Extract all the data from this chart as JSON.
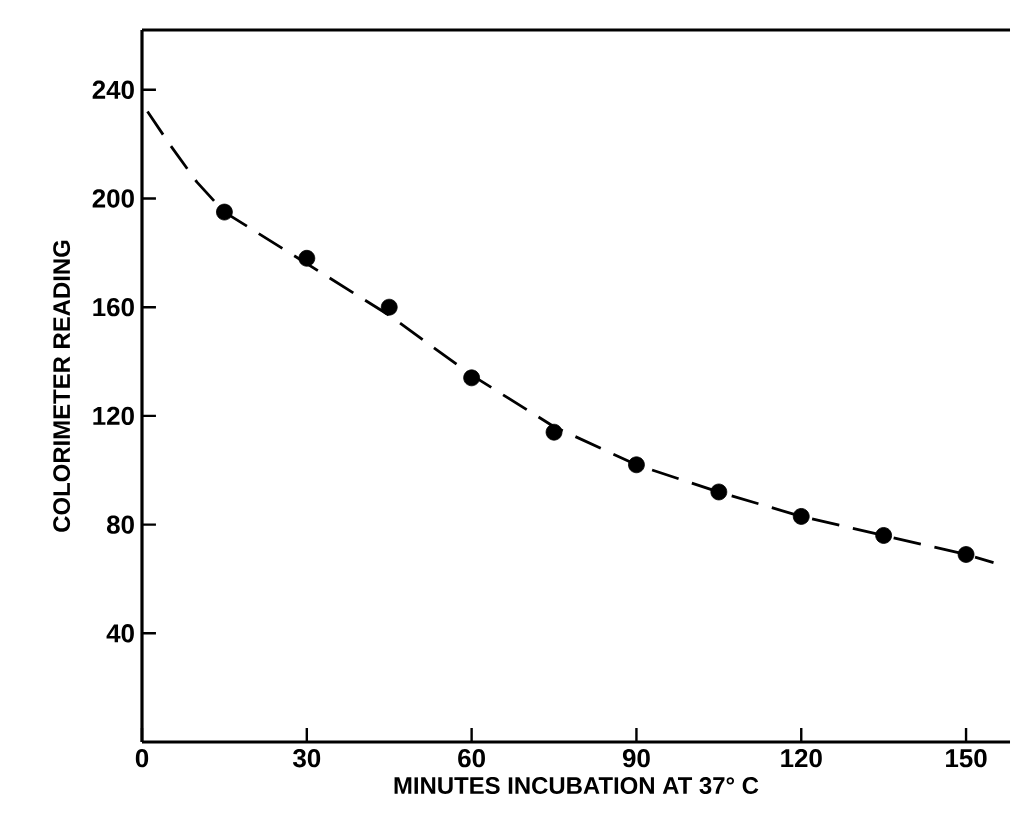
{
  "chart_data": {
    "type": "scatter",
    "xlabel": "MINUTES INCUBATION AT 37° C",
    "ylabel": "COLORIMETER READING",
    "xlim": [
      0,
      158
    ],
    "ylim": [
      0,
      262
    ],
    "xticks": [
      0,
      30,
      60,
      90,
      120,
      150
    ],
    "yticks": [
      40,
      80,
      120,
      160,
      200,
      240
    ],
    "grid": false,
    "series": [
      {
        "marker": "circle",
        "color": "#000000",
        "x": [
          15,
          30,
          45,
          60,
          75,
          90,
          105,
          120,
          135,
          150
        ],
        "values": [
          195,
          178,
          160,
          134,
          114,
          102,
          92,
          83,
          76,
          69
        ]
      },
      {
        "type": "line",
        "marker": "none",
        "line_style": "dashed",
        "color": "#000000",
        "x": [
          1,
          5,
          10,
          15,
          30,
          45,
          60,
          75,
          90,
          105,
          120,
          135,
          150,
          155
        ],
        "values": [
          232,
          220,
          206,
          195,
          176,
          157,
          135,
          116,
          102,
          92,
          83,
          76,
          69,
          66
        ]
      }
    ]
  }
}
